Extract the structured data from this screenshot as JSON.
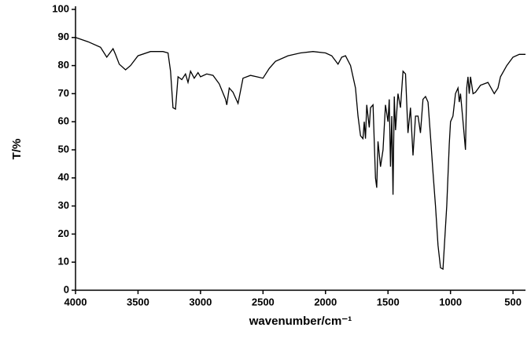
{
  "chart_data": {
    "type": "line",
    "xlabel": "wavenumber/cm⁻¹",
    "ylabel": "T/%",
    "x": [
      4000,
      3900,
      3800,
      3750,
      3700,
      3680,
      3650,
      3600,
      3560,
      3500,
      3400,
      3300,
      3260,
      3240,
      3220,
      3200,
      3180,
      3150,
      3120,
      3100,
      3080,
      3050,
      3020,
      3000,
      2950,
      2900,
      2850,
      2800,
      2790,
      2770,
      2740,
      2700,
      2660,
      2600,
      2550,
      2500,
      2450,
      2400,
      2300,
      2200,
      2100,
      2000,
      1950,
      1900,
      1870,
      1840,
      1800,
      1760,
      1740,
      1720,
      1700,
      1690,
      1680,
      1670,
      1650,
      1640,
      1620,
      1600,
      1590,
      1580,
      1560,
      1540,
      1520,
      1500,
      1490,
      1480,
      1470,
      1460,
      1450,
      1440,
      1420,
      1400,
      1380,
      1360,
      1340,
      1320,
      1300,
      1280,
      1260,
      1240,
      1220,
      1200,
      1180,
      1160,
      1140,
      1120,
      1100,
      1080,
      1060,
      1050,
      1030,
      1010,
      1000,
      980,
      960,
      940,
      930,
      920,
      900,
      880,
      870,
      860,
      850,
      840,
      820,
      800,
      760,
      700,
      650,
      620,
      600,
      550,
      500,
      450,
      400
    ],
    "values": [
      90,
      88.5,
      86.5,
      83,
      86,
      84,
      80.5,
      78.5,
      80,
      83.5,
      85,
      85,
      84.5,
      78,
      65,
      64.5,
      76,
      75,
      77,
      74,
      78,
      75.5,
      77.5,
      76,
      77,
      76.5,
      73.5,
      68,
      66,
      72,
      70.5,
      66.5,
      75.5,
      76.5,
      76,
      75.5,
      79,
      81.5,
      83.5,
      84.5,
      85,
      84.5,
      83.5,
      80.5,
      83,
      83.5,
      80,
      72,
      62,
      55,
      54,
      60,
      54,
      66,
      58,
      65,
      66,
      40,
      36.5,
      53,
      44,
      50,
      66,
      60,
      68,
      44,
      62,
      34,
      69,
      57,
      70,
      65,
      78,
      77,
      56,
      65,
      48,
      62,
      62,
      56,
      68,
      69,
      67,
      55,
      42,
      30,
      16,
      8,
      7.5,
      15,
      30,
      52,
      60,
      62,
      70,
      72,
      67,
      70,
      60,
      50,
      72,
      76,
      70,
      76,
      70,
      70.5,
      73,
      74,
      70,
      72,
      76,
      80,
      83,
      84,
      84
    ],
    "color": "#000000",
    "xlim": [
      4000,
      400
    ],
    "ylim": [
      0,
      100
    ],
    "xticks": [
      4000,
      3500,
      3000,
      2500,
      2000,
      1500,
      1000,
      500
    ],
    "yticks": [
      0,
      10,
      20,
      30,
      40,
      50,
      60,
      70,
      80,
      90,
      100
    ]
  }
}
